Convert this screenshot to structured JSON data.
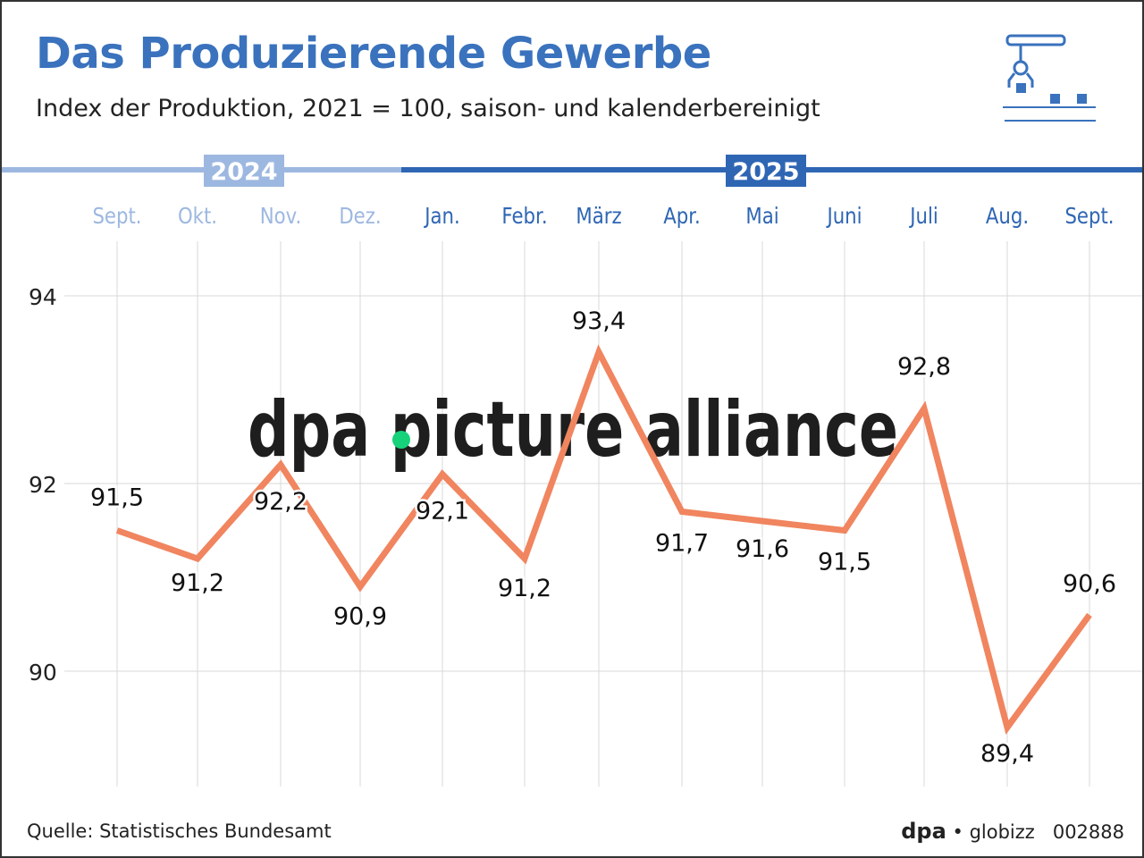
{
  "title": "Das Produzierende Gewerbe",
  "subtitle": "Index der Produktion, 2021 = 100, saison- und kalenderbereinigt",
  "source": "Quelle: Statistisches Bundesamt",
  "credit": {
    "brand": "dpa",
    "partner": "globizz",
    "id": "002888"
  },
  "watermark": "dpa picture alliance",
  "icon": "factory-robot-arm-icon",
  "colors": {
    "title": "#3a72bd",
    "line": "#f0855f",
    "year_2024": "#9db8e0",
    "year_2025": "#2f66b4",
    "grid": "#d8d8d8"
  },
  "chart_data": {
    "type": "line",
    "years": [
      {
        "label": "2024",
        "start": 0,
        "end": 3
      },
      {
        "label": "2025",
        "start": 4,
        "end": 12
      }
    ],
    "categories": [
      "Sept.",
      "Okt.",
      "Nov.",
      "Dez.",
      "Jan.",
      "Febr.",
      "März",
      "Apr.",
      "Mai",
      "Juni",
      "Juli",
      "Aug.",
      "Sept."
    ],
    "values": [
      91.5,
      91.2,
      92.2,
      90.9,
      92.1,
      91.2,
      93.4,
      91.7,
      91.6,
      91.5,
      92.8,
      89.4,
      90.6
    ],
    "labels": [
      "91,5",
      "91,2",
      "92,2",
      "90,9",
      "92,1",
      "91,2",
      "93,4",
      "91,7",
      "91,6",
      "91,5",
      "92,8",
      "89,4",
      "90,6"
    ],
    "yticks": [
      "90",
      "92",
      "94"
    ],
    "ylim": [
      88.8,
      95.2
    ],
    "grid": true
  }
}
